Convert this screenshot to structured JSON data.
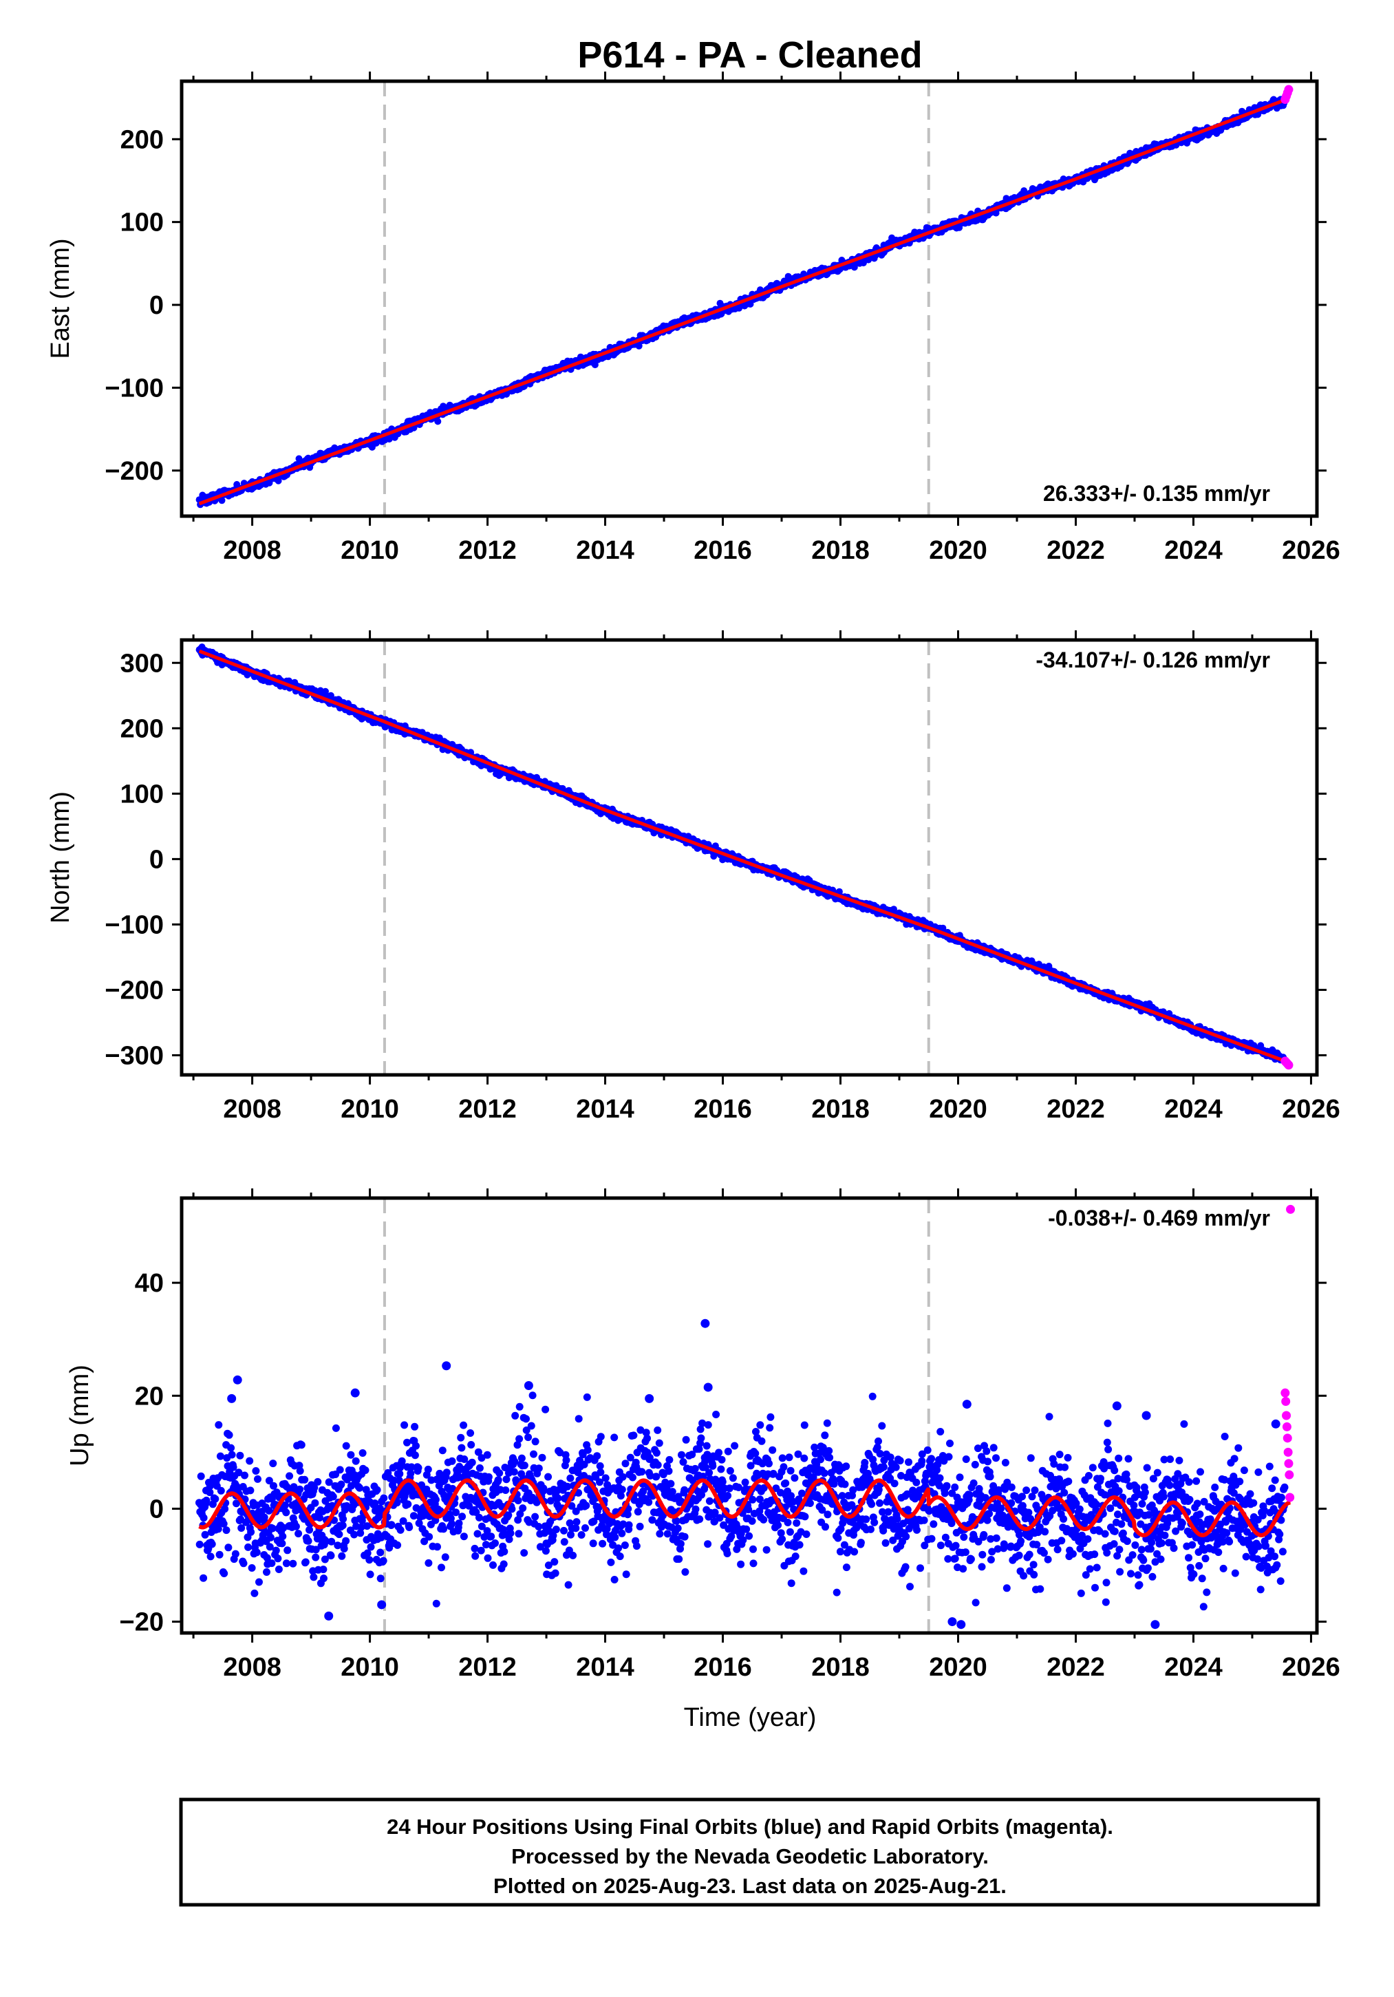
{
  "figure": {
    "title": "P614  - PA - Cleaned",
    "xlabel": "Time (year)",
    "footer": [
      "24 Hour Positions Using Final Orbits (blue) and Rapid Orbits (magenta).",
      "Processed by the Nevada Geodetic Laboratory.",
      "Plotted on 2025-Aug-23. Last data on 2025-Aug-21."
    ]
  },
  "colors": {
    "final_orbits": "#0000ff",
    "rapid_orbits": "#ff00ff",
    "model_fit": "#ff0000",
    "equipment_change": "#c0c0c0",
    "frame": "#000000"
  },
  "chart_data": [
    {
      "type": "scatter",
      "ylabel": "East (mm)",
      "xlim": [
        2006.8,
        2026.1
      ],
      "ylim": [
        -255,
        270
      ],
      "xticks": [
        2008,
        2010,
        2012,
        2014,
        2016,
        2018,
        2020,
        2022,
        2024,
        2026
      ],
      "yticks": [
        -200,
        -100,
        0,
        100,
        200
      ],
      "rate_label": "26.333+/- 0.135 mm/yr",
      "rate_position": "bottom-right",
      "breaks": [
        2010.25,
        2019.5
      ],
      "series": [
        {
          "name": "Final Orbits",
          "color": "#0000ff",
          "x_start": 2007.1,
          "x_end": 2025.55,
          "trend": {
            "x": [
              2007.1,
              2010.25,
              2014.0,
              2017.0,
              2019.5,
              2022.0,
              2025.55
            ],
            "y": [
              -240,
              -157,
              -58,
              22,
              87,
              152,
              245
            ]
          },
          "scatter_mm": 2.5
        },
        {
          "name": "Rapid Orbits",
          "color": "#ff00ff",
          "x": [
            2025.56,
            2025.58,
            2025.6,
            2025.62
          ],
          "y": [
            248,
            252,
            256,
            260
          ]
        },
        {
          "name": "Model",
          "color": "#ff0000",
          "trend": {
            "x": [
              2007.1,
              2010.25,
              2014.0,
              2017.0,
              2019.5,
              2022.0,
              2025.62
            ],
            "y": [
              -240,
              -157,
              -58,
              22,
              87,
              152,
              249
            ]
          }
        }
      ]
    },
    {
      "type": "scatter",
      "ylabel": "North (mm)",
      "xlim": [
        2006.8,
        2026.1
      ],
      "ylim": [
        -330,
        335
      ],
      "xticks": [
        2008,
        2010,
        2012,
        2014,
        2016,
        2018,
        2020,
        2022,
        2024,
        2026
      ],
      "yticks": [
        -300,
        -200,
        -100,
        0,
        100,
        200,
        300
      ],
      "rate_label": "-34.107+/- 0.126 mm/yr",
      "rate_position": "top-right",
      "breaks": [
        2010.25,
        2019.5
      ],
      "series": [
        {
          "name": "Final Orbits",
          "color": "#0000ff",
          "x_start": 2007.1,
          "x_end": 2025.55,
          "trend": {
            "x": [
              2007.1,
              2010.25,
              2014.0,
              2017.0,
              2019.5,
              2022.0,
              2025.55
            ],
            "y": [
              318,
              210,
              75,
              -25,
              -105,
              -190,
              -308
            ]
          },
          "scatter_mm": 3
        },
        {
          "name": "Rapid Orbits",
          "color": "#ff00ff",
          "x": [
            2025.56,
            2025.58,
            2025.6,
            2025.62
          ],
          "y": [
            -309,
            -311,
            -313,
            -315
          ]
        },
        {
          "name": "Model",
          "color": "#ff0000",
          "trend": {
            "x": [
              2007.1,
              2010.25,
              2014.0,
              2017.0,
              2019.5,
              2022.0,
              2025.62
            ],
            "y": [
              318,
              210,
              75,
              -25,
              -105,
              -190,
              -311
            ]
          }
        }
      ]
    },
    {
      "type": "scatter",
      "ylabel": "Up (mm)",
      "xlim": [
        2006.8,
        2026.1
      ],
      "ylim": [
        -22,
        55
      ],
      "xticks": [
        2008,
        2010,
        2012,
        2014,
        2016,
        2018,
        2020,
        2022,
        2024,
        2026
      ],
      "yticks": [
        -20,
        0,
        20,
        40
      ],
      "rate_label": "-0.038+/- 0.469 mm/yr",
      "rate_position": "top-right",
      "breaks": [
        2010.25,
        2019.5
      ],
      "series": [
        {
          "name": "Final Orbits",
          "color": "#0000ff",
          "x_start": 2007.1,
          "x_end": 2025.55,
          "seasonal_mean_mm": [
            -0.3,
            1.8,
            -0.8,
            -1.8
          ],
          "seasonal_amplitude_mm": [
            3.0,
            3.2,
            2.8,
            2.9
          ],
          "segment_starts": [
            2007.1,
            2010.25,
            2019.5,
            2023.0
          ],
          "scatter_mm": 5,
          "outliers": {
            "x": [
              2007.65,
              2007.75,
              2009.3,
              2009.75,
              2010.2,
              2011.3,
              2012.7,
              2014.75,
              2015.7,
              2015.75,
              2019.9,
              2020.05,
              2020.15,
              2022.7,
              2023.2,
              2023.35,
              2025.4
            ],
            "y": [
              19.5,
              22.8,
              -19,
              20.5,
              -17,
              25.3,
              21.8,
              19.5,
              32.8,
              21.5,
              -20,
              -20.5,
              18.5,
              18.2,
              16.5,
              -20.5,
              15
            ]
          }
        },
        {
          "name": "Rapid Orbits",
          "color": "#ff00ff",
          "x": [
            2025.56,
            2025.57,
            2025.58,
            2025.59,
            2025.6,
            2025.61,
            2025.62,
            2025.63,
            2025.64,
            2025.65
          ],
          "y": [
            20.5,
            19,
            16.5,
            14.5,
            12.5,
            10,
            8,
            6,
            2,
            53
          ]
        },
        {
          "name": "Model",
          "color": "#ff0000"
        }
      ]
    }
  ]
}
